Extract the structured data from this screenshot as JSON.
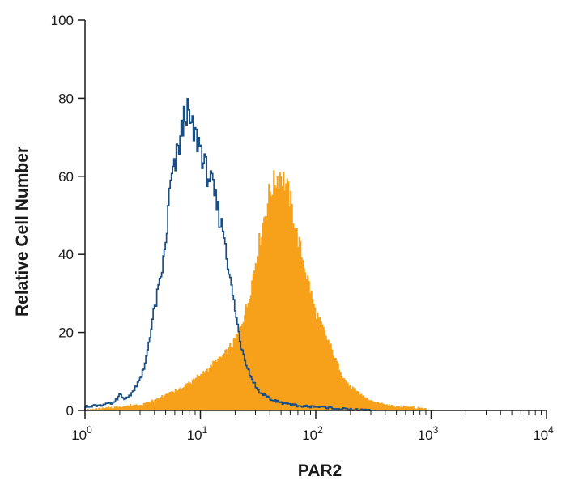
{
  "chart_data": {
    "type": "histogram",
    "xlabel": "PAR2",
    "ylabel": "Relative Cell Number",
    "title": "",
    "x_scale": "log",
    "xlim": [
      1,
      10000
    ],
    "ylim": [
      0,
      100
    ],
    "x_ticks": [
      {
        "base": "10",
        "exp": "0",
        "value": 1
      },
      {
        "base": "10",
        "exp": "1",
        "value": 10
      },
      {
        "base": "10",
        "exp": "2",
        "value": 100
      },
      {
        "base": "10",
        "exp": "3",
        "value": 1000
      },
      {
        "base": "10",
        "exp": "4",
        "value": 10000
      }
    ],
    "y_ticks": [
      "0",
      "20",
      "40",
      "60",
      "80",
      "100"
    ],
    "grid": false,
    "legend": "none",
    "series": [
      {
        "style": "filled",
        "color": "#f7a11a",
        "points": [
          [
            1,
            0
          ],
          [
            1.5,
            0.5
          ],
          [
            2,
            1
          ],
          [
            3,
            1.5
          ],
          [
            4,
            2.5
          ],
          [
            5,
            4
          ],
          [
            6,
            5
          ],
          [
            7,
            6
          ],
          [
            8,
            7
          ],
          [
            10,
            9
          ],
          [
            12,
            11
          ],
          [
            14,
            13
          ],
          [
            16,
            14
          ],
          [
            18,
            16
          ],
          [
            20,
            18
          ],
          [
            22,
            21
          ],
          [
            25,
            26
          ],
          [
            28,
            33
          ],
          [
            30,
            38
          ],
          [
            33,
            44
          ],
          [
            36,
            50
          ],
          [
            40,
            56
          ],
          [
            45,
            59
          ],
          [
            50,
            61
          ],
          [
            55,
            58
          ],
          [
            60,
            54
          ],
          [
            70,
            44
          ],
          [
            80,
            37
          ],
          [
            90,
            31
          ],
          [
            100,
            25
          ],
          [
            120,
            20
          ],
          [
            140,
            15
          ],
          [
            170,
            9
          ],
          [
            200,
            6
          ],
          [
            250,
            4
          ],
          [
            300,
            2.5
          ],
          [
            400,
            1.5
          ],
          [
            500,
            1
          ],
          [
            700,
            0.8
          ],
          [
            900,
            0.4
          ],
          [
            1000,
            0
          ]
        ]
      },
      {
        "style": "outline",
        "color": "#1a4f86",
        "points": [
          [
            1,
            1
          ],
          [
            1.5,
            1.5
          ],
          [
            1.8,
            2
          ],
          [
            2,
            4
          ],
          [
            2.2,
            3
          ],
          [
            2.5,
            4
          ],
          [
            3,
            8
          ],
          [
            3.3,
            11
          ],
          [
            3.6,
            18
          ],
          [
            4,
            26
          ],
          [
            4.5,
            33
          ],
          [
            5,
            42
          ],
          [
            5.5,
            58
          ],
          [
            6,
            62
          ],
          [
            6.5,
            68
          ],
          [
            7,
            72
          ],
          [
            7.5,
            78
          ],
          [
            8,
            74
          ],
          [
            9,
            70
          ],
          [
            10,
            68
          ],
          [
            11,
            62
          ],
          [
            12,
            60
          ],
          [
            13,
            56
          ],
          [
            14,
            52
          ],
          [
            15,
            48
          ],
          [
            16,
            46
          ],
          [
            17,
            40
          ],
          [
            18,
            34
          ],
          [
            20,
            26
          ],
          [
            22,
            18
          ],
          [
            25,
            12
          ],
          [
            28,
            8
          ],
          [
            32,
            5
          ],
          [
            40,
            3
          ],
          [
            50,
            2
          ],
          [
            60,
            1.5
          ],
          [
            80,
            1
          ],
          [
            100,
            1
          ],
          [
            150,
            0.5
          ],
          [
            200,
            0.2
          ],
          [
            300,
            0
          ]
        ]
      }
    ]
  }
}
